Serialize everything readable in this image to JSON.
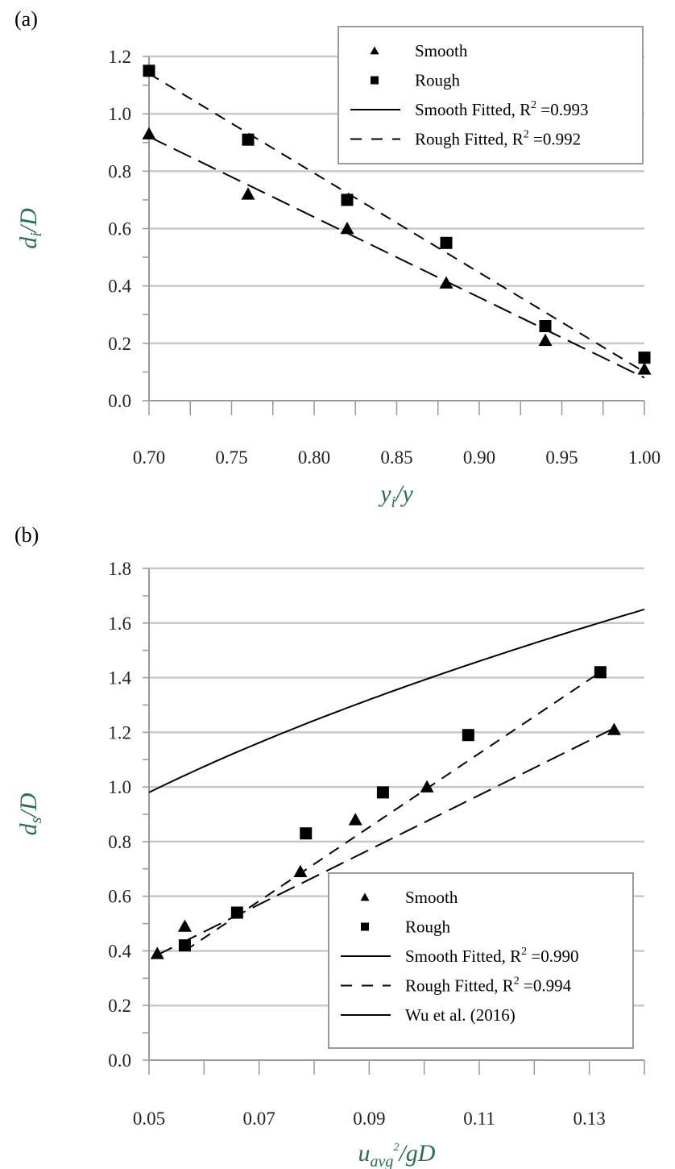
{
  "chart_data": [
    {
      "type": "scatter",
      "panel_label": "(a)",
      "xlabel": {
        "main": "y",
        "sub": "i",
        "rest": "/y"
      },
      "ylabel": {
        "main": "d",
        "sub": "i",
        "rest": "/D"
      },
      "xlim": [
        0.7,
        1.0
      ],
      "ylim": [
        0.0,
        1.2
      ],
      "xticks": [
        "0.70",
        "0.75",
        "0.80",
        "0.85",
        "0.90",
        "0.95",
        "1.00"
      ],
      "yticks": [
        "0.0",
        "0.2",
        "0.4",
        "0.6",
        "0.8",
        "1.0",
        "1.2"
      ],
      "grid": "horizontal",
      "legend_position": "top-right",
      "series": [
        {
          "name": "Smooth",
          "marker": "triangle",
          "x": [
            0.7,
            0.76,
            0.82,
            0.88,
            0.94,
            1.0
          ],
          "y": [
            0.93,
            0.72,
            0.6,
            0.41,
            0.21,
            0.11
          ]
        },
        {
          "name": "Rough",
          "marker": "square",
          "x": [
            0.7,
            0.76,
            0.82,
            0.88,
            0.94,
            1.0
          ],
          "y": [
            1.15,
            0.91,
            0.7,
            0.55,
            0.26,
            0.15
          ]
        }
      ],
      "fits": [
        {
          "name": "Smooth Fitted, R",
          "sup": "2",
          "r2": " =0.993",
          "style": "longdash",
          "x": [
            0.7,
            1.0
          ],
          "y": [
            0.92,
            0.08
          ]
        },
        {
          "name": "Rough Fitted, R",
          "sup": "2",
          "r2": " =0.992",
          "style": "dash",
          "x": [
            0.7,
            1.0
          ],
          "y": [
            1.14,
            0.1
          ]
        }
      ]
    },
    {
      "type": "scatter",
      "panel_label": "(b)",
      "xlabel": {
        "main": "u",
        "sub": "avg",
        "sup": "2",
        "rest": "/gD"
      },
      "ylabel": {
        "main": "d",
        "sub": "s",
        "rest": "/D"
      },
      "xlim": [
        0.05,
        0.14
      ],
      "ylim": [
        0.0,
        1.8
      ],
      "xticks": [
        "0.05",
        "0.07",
        "0.09",
        "0.11",
        "0.13"
      ],
      "yticks": [
        "0.0",
        "0.2",
        "0.4",
        "0.6",
        "0.8",
        "1.0",
        "1.2",
        "1.4",
        "1.6",
        "1.8"
      ],
      "grid": "horizontal",
      "legend_position": "bottom-right",
      "series": [
        {
          "name": "Smooth",
          "marker": "triangle",
          "x": [
            0.0515,
            0.0565,
            0.0775,
            0.0875,
            0.1005,
            0.1345
          ],
          "y": [
            0.39,
            0.49,
            0.69,
            0.88,
            1.0,
            1.21
          ]
        },
        {
          "name": "Rough",
          "marker": "square",
          "x": [
            0.0565,
            0.066,
            0.0785,
            0.0925,
            0.108,
            0.132
          ],
          "y": [
            0.42,
            0.54,
            0.83,
            0.98,
            1.19,
            1.42
          ]
        }
      ],
      "fits": [
        {
          "name": "Smooth Fitted, R",
          "sup": "2",
          "r2": " =0.990",
          "style": "longdash",
          "x": [
            0.051,
            0.135
          ],
          "y": [
            0.38,
            1.22
          ]
        },
        {
          "name": "Rough Fitted, R",
          "sup": "2",
          "r2": " =0.994",
          "style": "dash",
          "x": [
            0.0565,
            0.132
          ],
          "y": [
            0.4,
            1.42
          ]
        },
        {
          "name": "Wu et al. (2016)",
          "style": "solid",
          "curve": "power",
          "x": [
            0.05,
            0.14
          ],
          "y": [
            0.98,
            1.65
          ]
        }
      ]
    }
  ],
  "colors": {
    "axis_label": "#2e6b52",
    "grid": "#c8c8c8",
    "axis": "#999999",
    "marker": "#000000"
  }
}
